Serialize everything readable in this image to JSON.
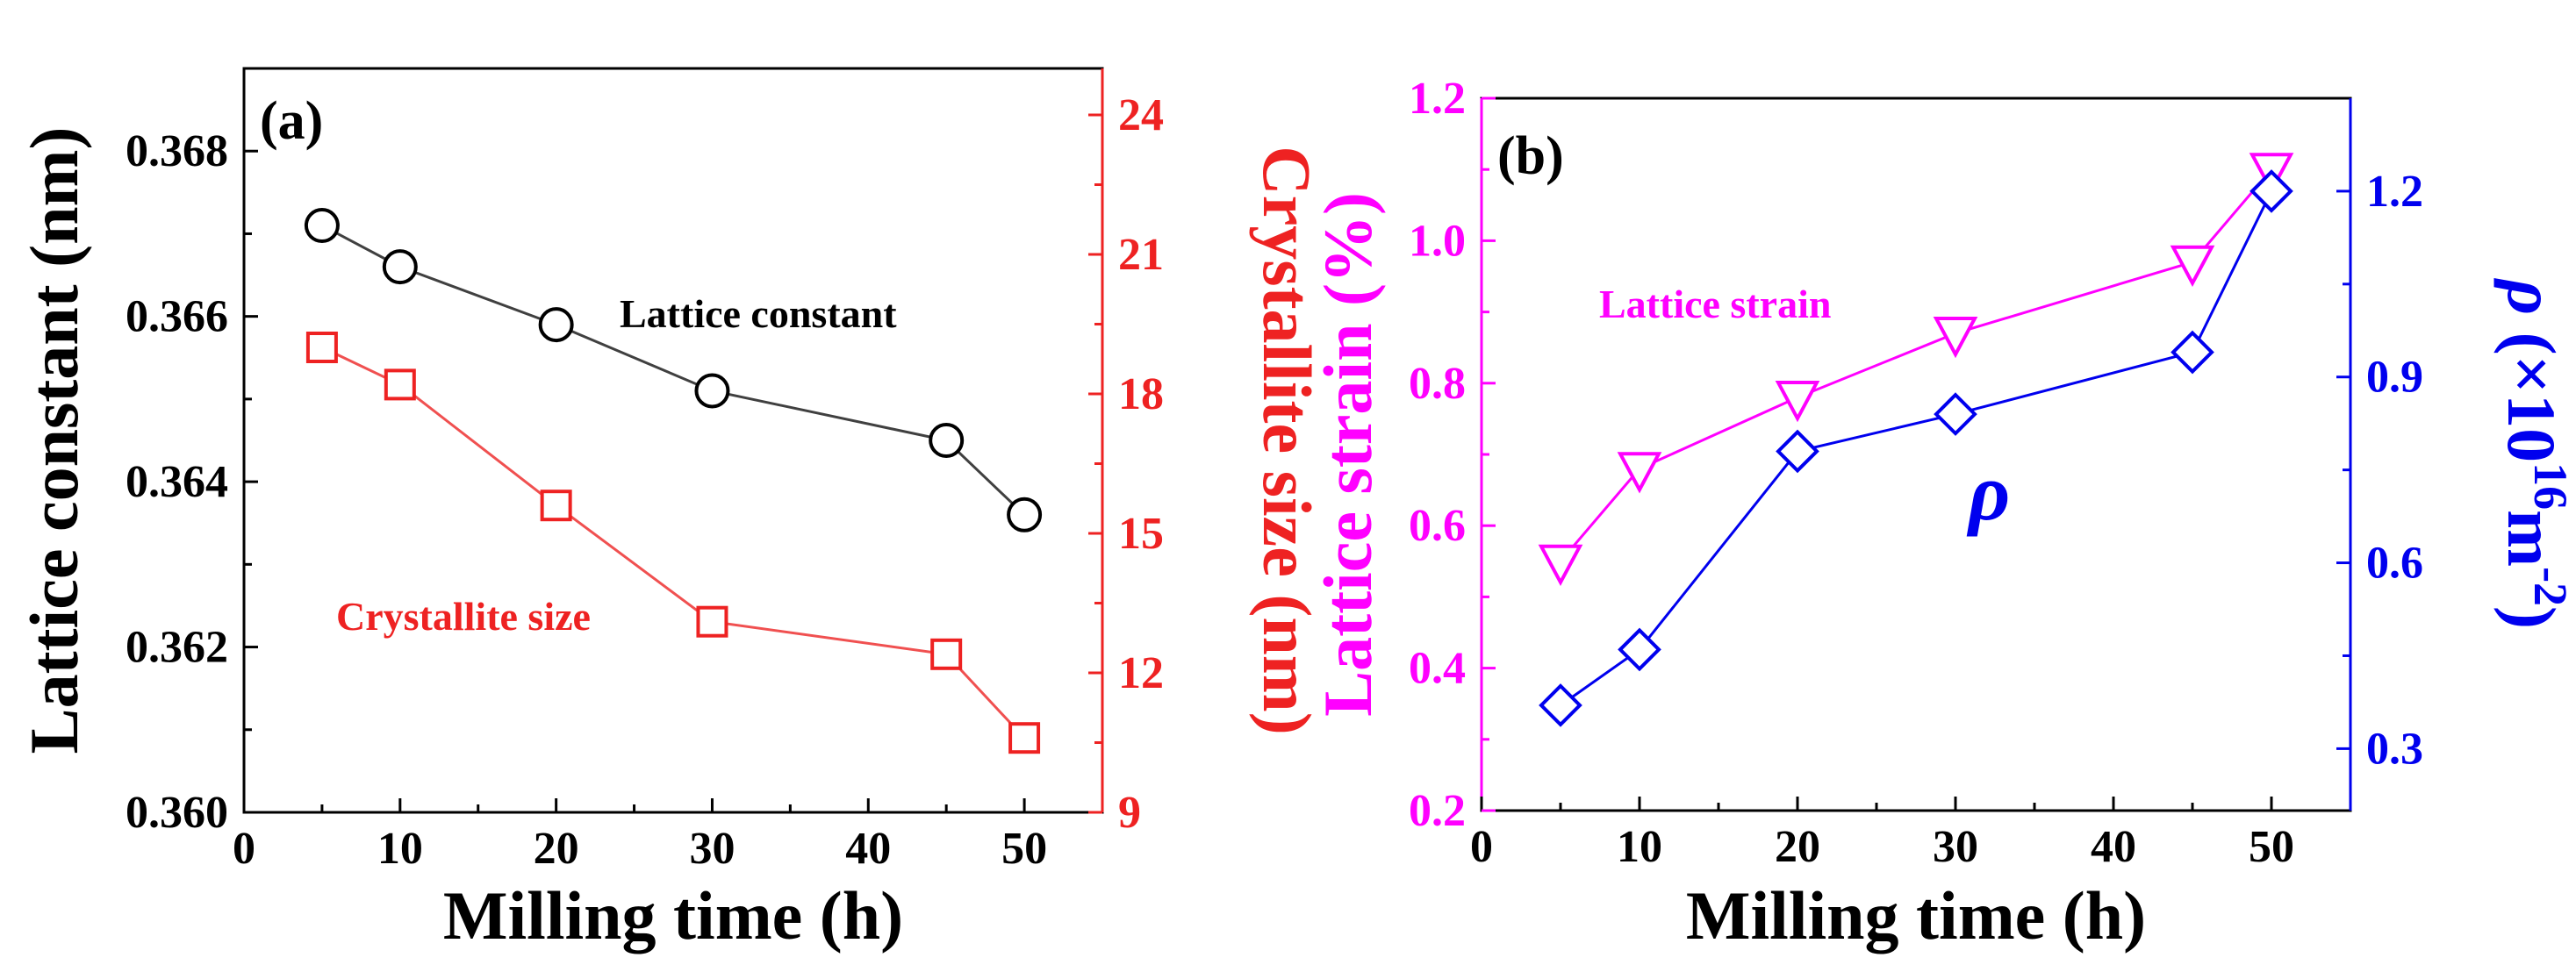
{
  "colors": {
    "black": "#000000",
    "gray_line": "#404040",
    "red": "#ee2222",
    "red_line": "#f05050",
    "magenta": "#ff00ff",
    "blue": "#0000ee"
  },
  "chart_data": [
    {
      "type": "line",
      "panel_label": "(a)",
      "xlabel": "Milling time (h)",
      "x_ticks": [
        "0",
        "10",
        "20",
        "30",
        "40",
        "50"
      ],
      "xlim": [
        0,
        55
      ],
      "ylabel_left": "Lattice constant (nm)",
      "ylim_left": [
        0.36,
        0.369
      ],
      "y_ticks_left": [
        "0.360",
        "0.362",
        "0.364",
        "0.366",
        "0.368"
      ],
      "ylabel_right": "Crystallite size (nm)",
      "ylim_right": [
        9,
        25
      ],
      "y_ticks_right": [
        "9",
        "12",
        "15",
        "18",
        "21",
        "24"
      ],
      "series": [
        {
          "name": "Lattice constant",
          "axis": "left",
          "marker": "circle",
          "x": [
            5,
            10,
            20,
            30,
            45,
            50
          ],
          "values": [
            0.3671,
            0.3666,
            0.3659,
            0.3651,
            0.3645,
            0.3636
          ]
        },
        {
          "name": "Crystallite size",
          "axis": "right",
          "marker": "square",
          "x": [
            5,
            10,
            20,
            30,
            45,
            50
          ],
          "values": [
            19.0,
            18.2,
            15.6,
            13.1,
            12.4,
            10.6
          ]
        }
      ]
    },
    {
      "type": "line",
      "panel_label": "(b)",
      "xlabel": "Milling time (h)",
      "x_ticks": [
        "0",
        "10",
        "20",
        "30",
        "40",
        "50"
      ],
      "xlim": [
        0,
        55
      ],
      "ylabel_left": "Lattice strain (%)",
      "ylim_left": [
        0.2,
        1.2
      ],
      "y_ticks_left": [
        "0.2",
        "0.4",
        "0.6",
        "0.8",
        "1.0",
        "1.2"
      ],
      "ylabel_right": "ρ (×10¹⁶m⁻²)",
      "ylabel_right_parts": {
        "symbol": "ρ",
        "open": " (×10",
        "exp1": "16",
        "unit": "m",
        "exp2": "-2",
        "close": ")"
      },
      "ylim_right": [
        0.2,
        1.35
      ],
      "y_ticks_right": [
        "0.3",
        "0.6",
        "0.9",
        "1.2"
      ],
      "series": [
        {
          "name": "Lattice strain",
          "axis": "left",
          "marker": "triangle-down",
          "x": [
            5,
            10,
            20,
            30,
            45,
            50
          ],
          "values": [
            0.55,
            0.68,
            0.78,
            0.87,
            0.97,
            1.1
          ]
        },
        {
          "name": "ρ",
          "axis": "right",
          "marker": "diamond",
          "x": [
            5,
            10,
            20,
            30,
            45,
            50
          ],
          "values": [
            0.37,
            0.46,
            0.78,
            0.84,
            0.94,
            1.2
          ]
        }
      ]
    }
  ]
}
